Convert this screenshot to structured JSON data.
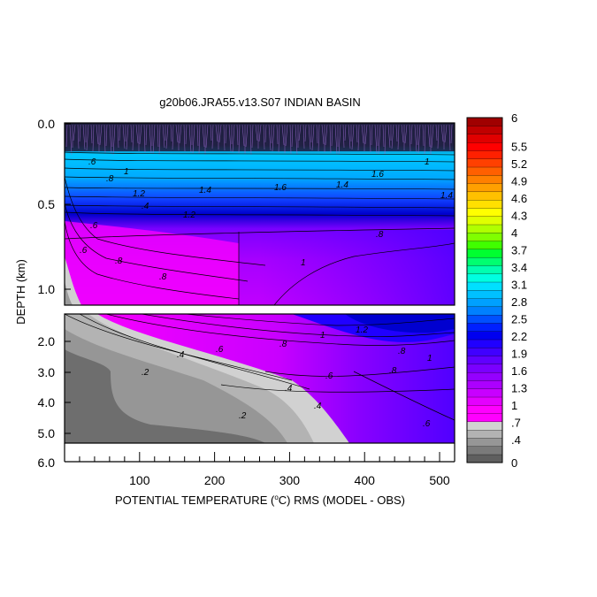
{
  "chart_data": {
    "type": "heatmap",
    "title": "g20b06.JRA55.v13.S07 INDIAN BASIN",
    "xlabel": "POTENTIAL TEMPERATURE (°C) RMS (MODEL - OBS)",
    "xlabel_parts": {
      "pre": "POTENTIAL TEMPERATURE (",
      "sup": "o",
      "post": "C) RMS (MODEL - OBS)"
    },
    "ylabel": "DEPTH (km)",
    "x_ticks": [
      "100",
      "200",
      "300",
      "400",
      "500"
    ],
    "xlim": [
      0,
      520
    ],
    "upper_panel": {
      "ylim": [
        0.0,
        1.1
      ],
      "y_ticks": [
        "0.0",
        "0.5",
        "1.0"
      ]
    },
    "lower_panel": {
      "ylim": [
        1.3,
        5.4
      ],
      "y_ticks": [
        "2.0",
        "3.0",
        "4.0",
        "5.0",
        "6.0"
      ]
    },
    "colorbar": {
      "min": 0,
      "max": 6,
      "tick_labels": [
        "6",
        "5.5",
        "5.2",
        "4.9",
        "4.6",
        "4.3",
        "4",
        "3.7",
        "3.4",
        "3.1",
        "2.8",
        "2.5",
        "2.2",
        "1.9",
        "1.6",
        "1.3",
        "1",
        ".7",
        ".4",
        "0"
      ],
      "colors": [
        "#5f5f5f",
        "#7a7a7a",
        "#969696",
        "#b3b3b3",
        "#d1d1d1",
        "#ff00ff",
        "#ff00ff",
        "#e400ff",
        "#c800ff",
        "#ac00ff",
        "#9400ff",
        "#7a00ff",
        "#6000ff",
        "#4000ff",
        "#2000ff",
        "#0000f0",
        "#0020ff",
        "#0050ff",
        "#0080ff",
        "#00a0ff",
        "#00c0ff",
        "#00e0ff",
        "#00ffe0",
        "#00ffb0",
        "#00ff70",
        "#00ff30",
        "#40ff00",
        "#80ff00",
        "#b0ff00",
        "#e0ff00",
        "#ffff00",
        "#ffe000",
        "#ffc000",
        "#ffa000",
        "#ff8000",
        "#ff6000",
        "#ff4000",
        "#ff2000",
        "#ff0000",
        "#e00000",
        "#c00000",
        "#a00000"
      ]
    },
    "contour_labels_upper": [
      ".6",
      ".8",
      "1",
      "1.2",
      "1.4",
      "1.6",
      ".4",
      "1.4",
      "1.6",
      "1",
      "1.4",
      ".6",
      ".8",
      ".8",
      ".8",
      ".8",
      "1",
      ".4"
    ],
    "contour_labels_lower": [
      ".4",
      ".6",
      ".8",
      "1",
      "1.2",
      ".2",
      ".4",
      ".6",
      ".8",
      "1",
      ".2",
      ".4",
      ".6",
      ".8"
    ]
  }
}
